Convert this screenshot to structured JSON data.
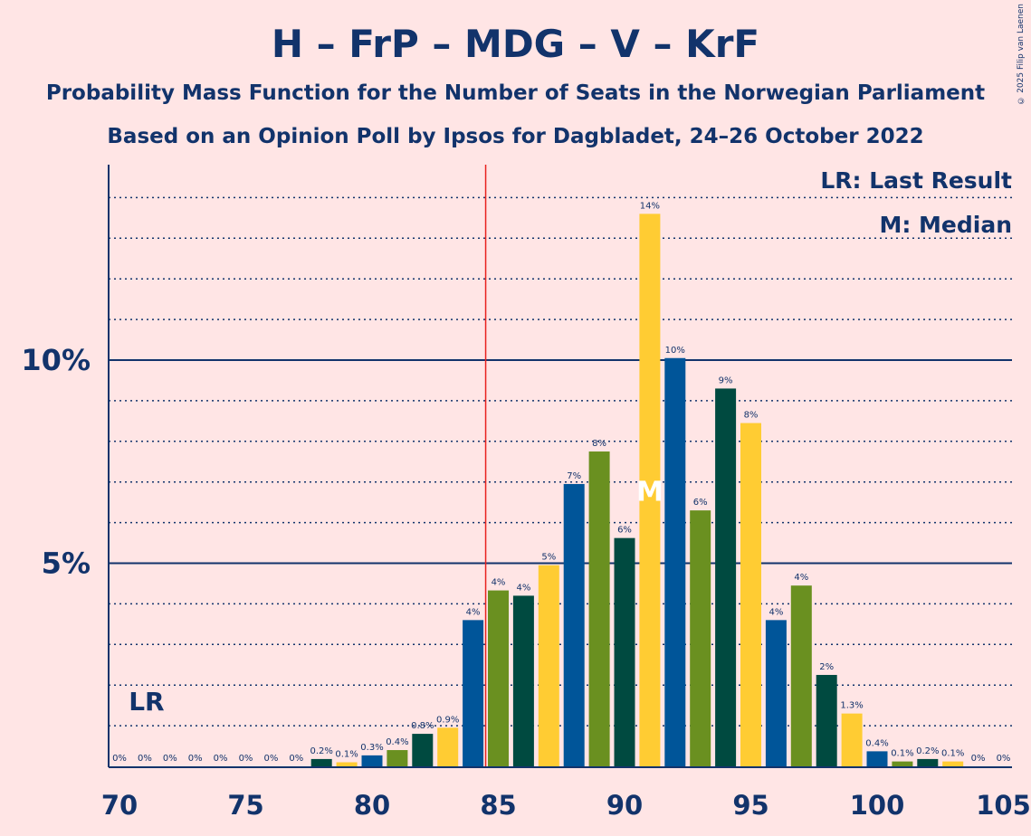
{
  "title": "H – FrP – MDG – V – KrF",
  "subtitle1": "Probability Mass Function for the Number of Seats in the Norwegian Parliament",
  "subtitle2": "Based on an Opinion Poll by Ipsos for Dagbladet, 24–26 October 2022",
  "copyright": "© 2025 Filip van Laenen",
  "legend": {
    "last_result": "LR: Last Result",
    "median": "M: Median"
  },
  "markers": {
    "last_result_label": "LR",
    "median_label": "M"
  },
  "colors": {
    "background": "#FFE5E5",
    "text": "#12336B",
    "majority_line": "#E8221F",
    "bar_palette": [
      "#005599",
      "#6A9020",
      "#004A40",
      "#FFCC33"
    ]
  },
  "chart_data": {
    "type": "bar",
    "x": [
      70,
      71,
      72,
      73,
      74,
      75,
      76,
      77,
      78,
      79,
      80,
      81,
      82,
      83,
      84,
      85,
      86,
      87,
      88,
      89,
      90,
      91,
      92,
      93,
      94,
      95,
      96,
      97,
      98,
      99,
      100,
      101,
      102,
      103,
      104,
      105
    ],
    "values": [
      0,
      0,
      0,
      0,
      0,
      0,
      0,
      0,
      0.18,
      0.1,
      0.27,
      0.4,
      0.8,
      0.95,
      3.6,
      4.33,
      4.2,
      4.95,
      6.95,
      7.75,
      5.62,
      13.6,
      10.05,
      6.3,
      9.3,
      8.45,
      3.6,
      4.45,
      2.25,
      1.3,
      0.37,
      0.12,
      0.18,
      0.12,
      0,
      0
    ],
    "labels": [
      "0%",
      "0%",
      "0%",
      "0%",
      "0%",
      "0%",
      "0%",
      "0%",
      "0.2%",
      "0.1%",
      "0.3%",
      "0.4%",
      "0.8%",
      "0.9%",
      "4%",
      "4%",
      "4%",
      "5%",
      "7%",
      "8%",
      "6%",
      "14%",
      "10%",
      "6%",
      "9%",
      "8%",
      "4%",
      "4%",
      "2%",
      "1.3%",
      "0.4%",
      "0.1%",
      "0.2%",
      "0.1%",
      "0%",
      "0%"
    ],
    "xlim": [
      70,
      105
    ],
    "ylim": [
      0,
      14.8
    ],
    "x_ticks": [
      "70",
      "75",
      "80",
      "85",
      "90",
      "95",
      "100",
      "105"
    ],
    "y_ticks": [
      "5%",
      "10%"
    ],
    "majority_line_x": 84.5,
    "last_result_x": 71,
    "median_x": 91,
    "grid": "dotted every 1%, solid at 5% and 10%"
  }
}
